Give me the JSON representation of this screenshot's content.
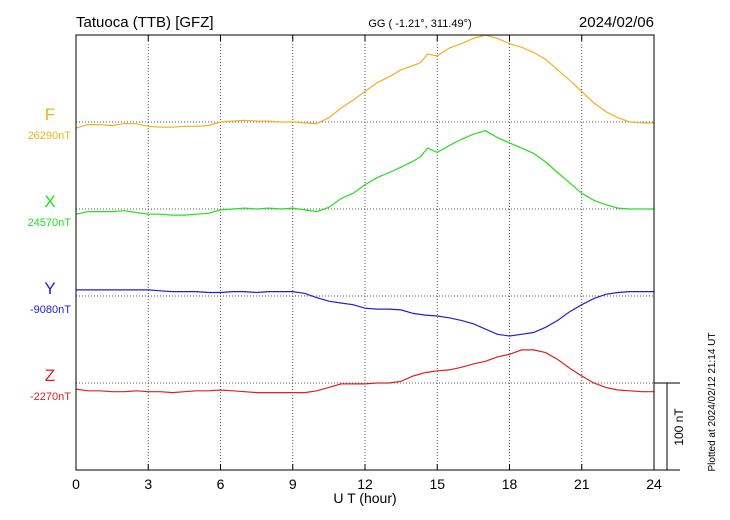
{
  "header": {
    "station": "Tatuoca (TTB)  [GFZ]",
    "coords": "GG ( -1.21°, 311.49°)",
    "date": "2024/02/06"
  },
  "footer": {
    "plotted": "Plotted at 2024/02/12 21:14 UT",
    "scale_label": "100 nT"
  },
  "chart_data": {
    "type": "line",
    "xlabel": "U T (hour)",
    "xlim": [
      0,
      24
    ],
    "xticks": [
      0,
      3,
      6,
      9,
      12,
      15,
      18,
      21,
      24
    ],
    "grid": true,
    "scale_bar_nT": 100,
    "series": [
      {
        "name": "F",
        "baseline_label": "26290nT",
        "color": "#f0b020",
        "baseline": 26290,
        "x": [
          0,
          0.5,
          1,
          1.5,
          2,
          2.5,
          3,
          3.5,
          4,
          4.5,
          5,
          5.5,
          6,
          6.5,
          7,
          7.5,
          8,
          8.5,
          9,
          9.5,
          10,
          10.5,
          11,
          11.5,
          12,
          12.5,
          13,
          13.5,
          14,
          14.3,
          14.6,
          15,
          15.5,
          16,
          16.5,
          17,
          17.5,
          18,
          18.5,
          19,
          19.5,
          20,
          20.5,
          21,
          21.5,
          22,
          22.5,
          23,
          23.5,
          24
        ],
        "values": [
          26283,
          26287,
          26287,
          26286,
          26288,
          26288,
          26285,
          26284,
          26284,
          26285,
          26285,
          26286,
          26290,
          26291,
          26292,
          26291,
          26291,
          26290,
          26290,
          26289,
          26288,
          26295,
          26306,
          26315,
          26325,
          26335,
          26342,
          26350,
          26355,
          26358,
          26368,
          26366,
          26375,
          26380,
          26386,
          26390,
          26386,
          26380,
          26376,
          26370,
          26362,
          26350,
          26338,
          26325,
          26312,
          26302,
          26295,
          26290,
          26289,
          26289
        ]
      },
      {
        "name": "X",
        "baseline_label": "24570nT",
        "color": "#20e020",
        "baseline": 24570,
        "x": [
          0,
          0.5,
          1,
          1.5,
          2,
          2.5,
          3,
          3.5,
          4,
          4.5,
          5,
          5.5,
          6,
          6.5,
          7,
          7.5,
          8,
          8.5,
          9,
          9.5,
          10,
          10.5,
          11,
          11.5,
          12,
          12.5,
          13,
          13.5,
          14,
          14.3,
          14.6,
          15,
          15.5,
          16,
          16.5,
          17,
          17.5,
          18,
          18.5,
          19,
          19.5,
          20,
          20.5,
          21,
          21.5,
          22,
          22.5,
          23,
          23.5,
          24
        ],
        "values": [
          24564,
          24567,
          24567,
          24567,
          24568,
          24566,
          24564,
          24564,
          24563,
          24563,
          24564,
          24565,
          24569,
          24570,
          24571,
          24570,
          24571,
          24570,
          24571,
          24569,
          24567,
          24572,
          24582,
          24588,
          24598,
          24606,
          24612,
          24618,
          24625,
          24630,
          24640,
          24635,
          24643,
          24650,
          24656,
          24660,
          24652,
          24646,
          24640,
          24634,
          24624,
          24612,
          24600,
          24588,
          24580,
          24575,
          24571,
          24570,
          24570,
          24570
        ]
      },
      {
        "name": "Y",
        "baseline_label": "-9080nT",
        "color": "#2020d0",
        "baseline": -9080,
        "x": [
          0,
          0.5,
          1,
          1.5,
          2,
          2.5,
          3,
          3.5,
          4,
          4.5,
          5,
          5.5,
          6,
          6.5,
          7,
          7.5,
          8,
          8.5,
          9,
          9.5,
          10,
          10.5,
          11,
          11.5,
          12,
          12.5,
          13,
          13.5,
          14,
          14.5,
          15,
          15.5,
          16,
          16.5,
          17,
          17.5,
          18,
          18.5,
          19,
          19.5,
          20,
          20.5,
          21,
          21.5,
          22,
          22.5,
          23,
          23.5,
          24
        ],
        "values": [
          -9073,
          -9073,
          -9073,
          -9073,
          -9073,
          -9073,
          -9073,
          -9074,
          -9075,
          -9075,
          -9075,
          -9076,
          -9076,
          -9075,
          -9075,
          -9076,
          -9075,
          -9075,
          -9075,
          -9077,
          -9082,
          -9086,
          -9088,
          -9090,
          -9094,
          -9095,
          -9095,
          -9096,
          -9100,
          -9102,
          -9103,
          -9105,
          -9108,
          -9112,
          -9118,
          -9124,
          -9126,
          -9124,
          -9122,
          -9116,
          -9108,
          -9098,
          -9090,
          -9083,
          -9078,
          -9076,
          -9075,
          -9075,
          -9075
        ]
      },
      {
        "name": "Z",
        "baseline_label": "-2270nT",
        "color": "#e02020",
        "baseline": -2270,
        "x": [
          0,
          0.5,
          1,
          1.5,
          2,
          2.5,
          3,
          3.5,
          4,
          4.5,
          5,
          5.5,
          6,
          6.5,
          7,
          7.5,
          8,
          8.5,
          9,
          9.5,
          10,
          10.5,
          11,
          11.5,
          12,
          12.5,
          13,
          13.5,
          14,
          14.5,
          15,
          15.5,
          16,
          16.5,
          17,
          17.5,
          18,
          18.5,
          19,
          19.5,
          20,
          20.5,
          21,
          21.5,
          22,
          22.5,
          23,
          23.5,
          24
        ],
        "values": [
          -2277,
          -2279,
          -2279,
          -2280,
          -2280,
          -2279,
          -2280,
          -2280,
          -2281,
          -2280,
          -2279,
          -2279,
          -2278,
          -2279,
          -2280,
          -2281,
          -2281,
          -2281,
          -2281,
          -2281,
          -2279,
          -2275,
          -2271,
          -2271,
          -2271,
          -2270,
          -2270,
          -2268,
          -2262,
          -2258,
          -2256,
          -2255,
          -2252,
          -2248,
          -2245,
          -2240,
          -2237,
          -2232,
          -2232,
          -2235,
          -2243,
          -2253,
          -2262,
          -2270,
          -2275,
          -2278,
          -2279,
          -2280,
          -2280
        ]
      }
    ]
  }
}
